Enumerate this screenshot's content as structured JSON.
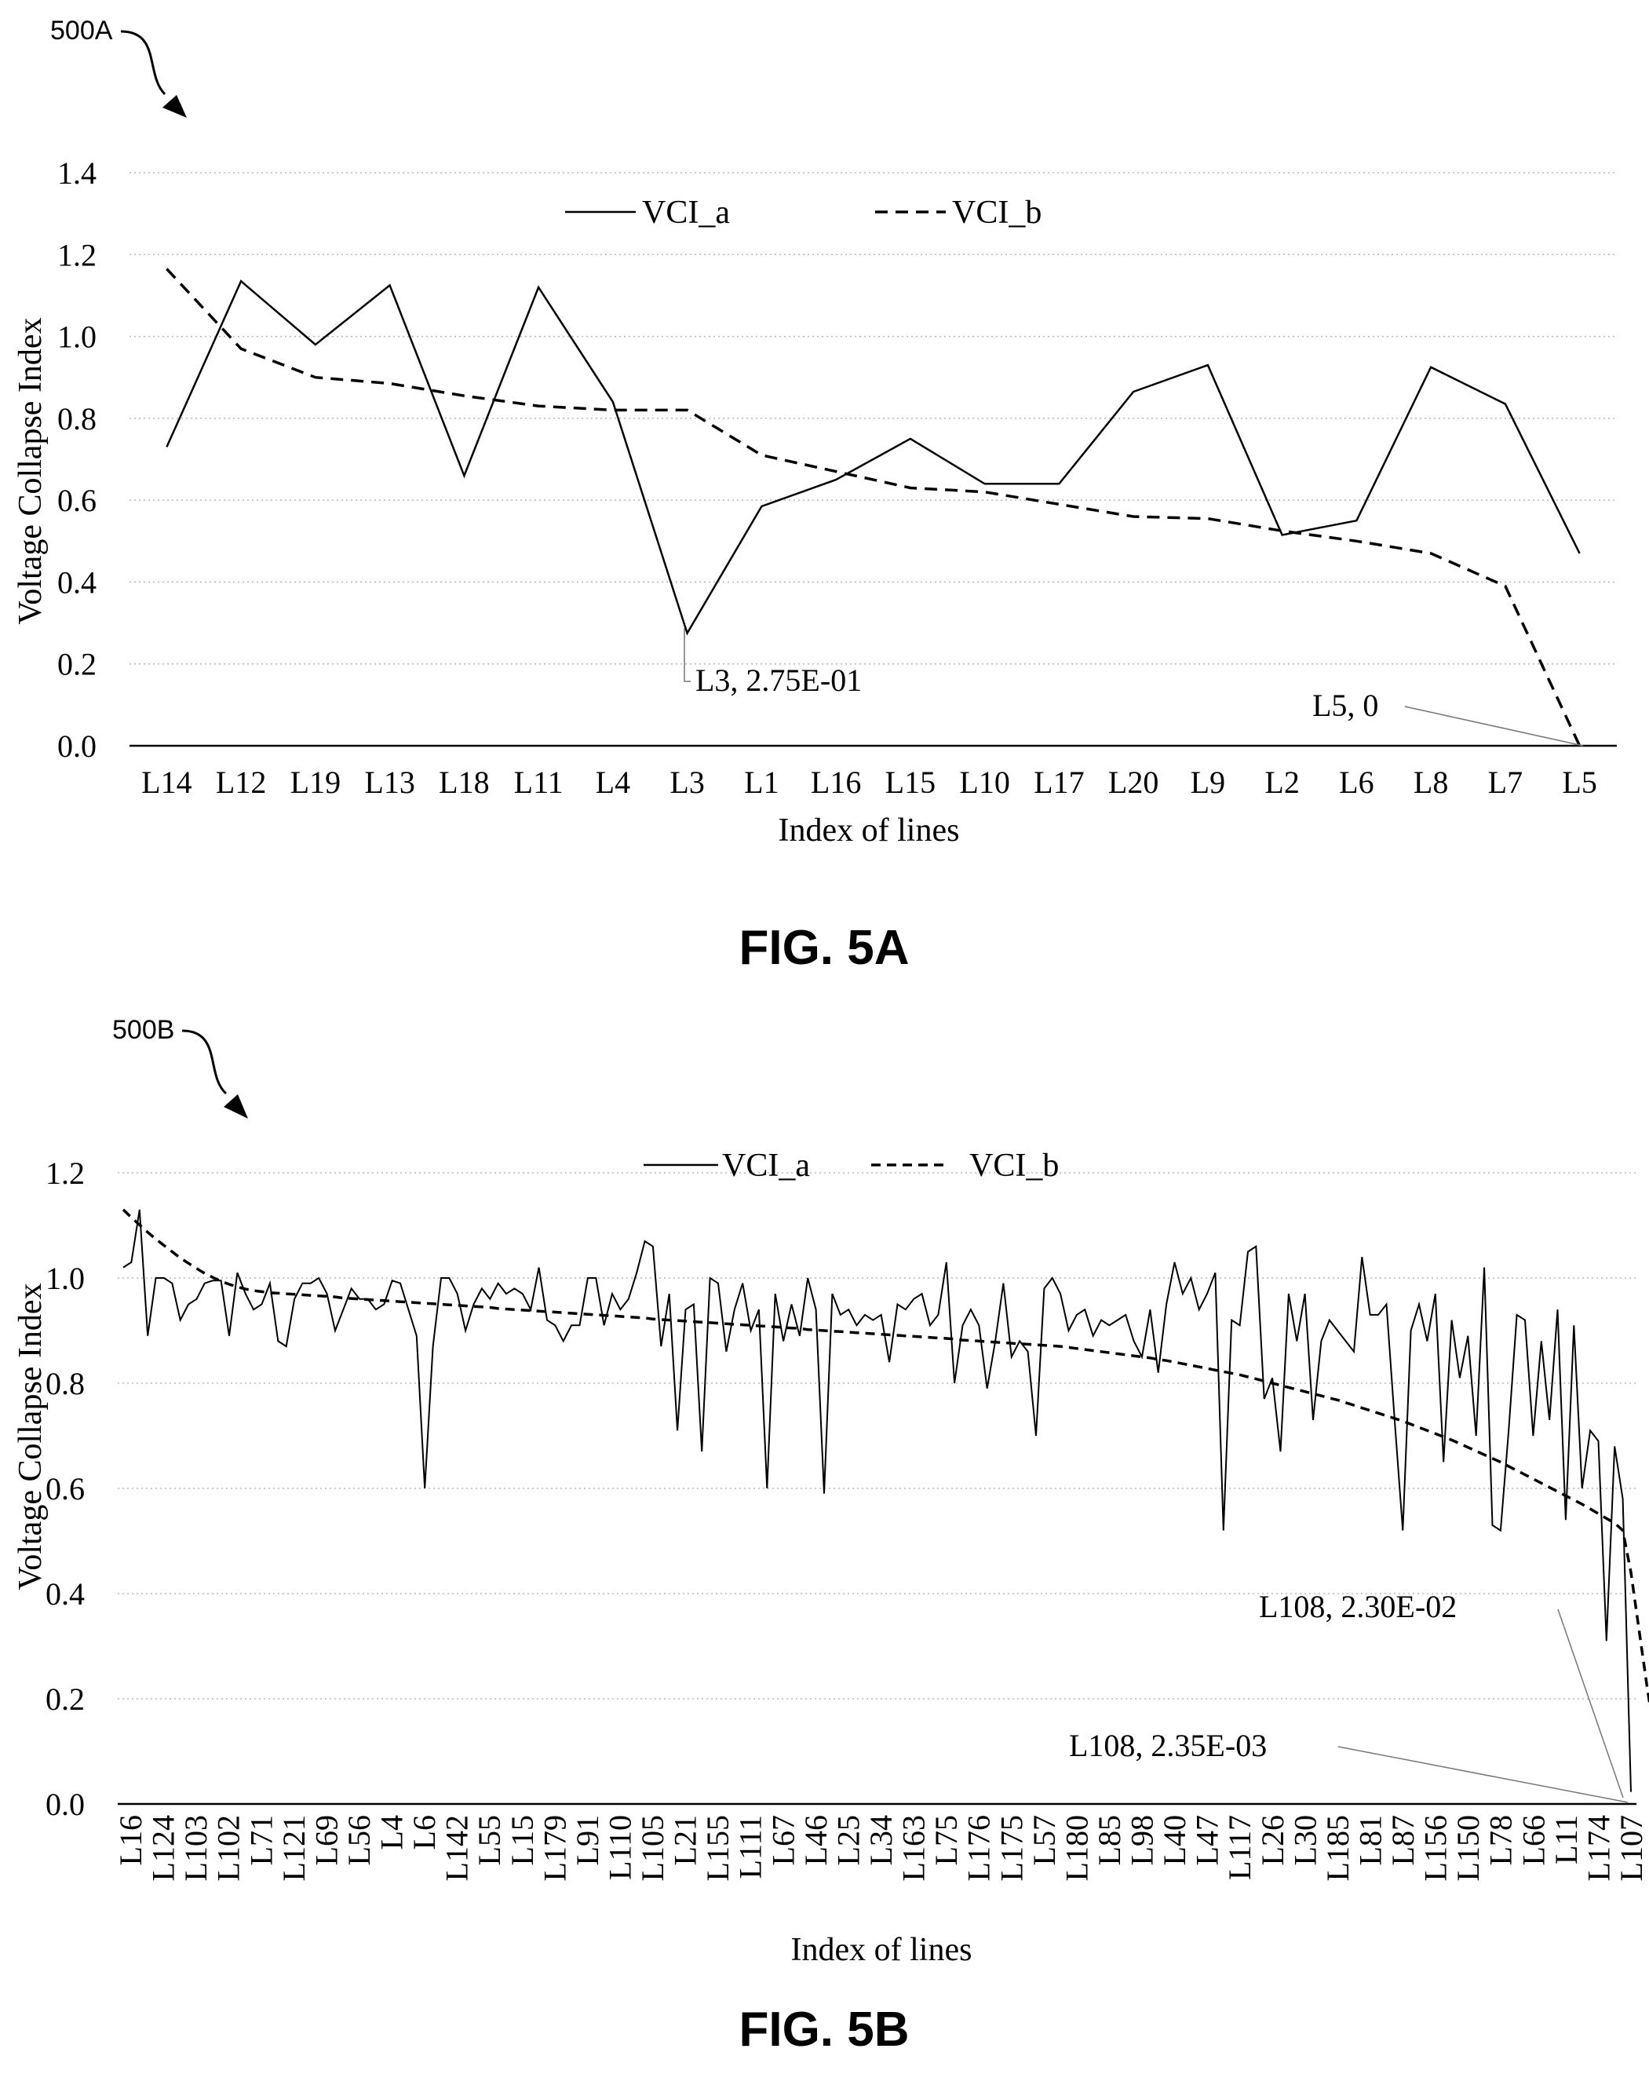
{
  "figures": [
    {
      "ref_label": "500A",
      "caption": "FIG.  5A",
      "chart_data": {
        "type": "line",
        "xlabel": "Index of lines",
        "ylabel": "Voltage Collapse Index",
        "ylim": [
          0,
          1.4
        ],
        "yticks": [
          "0.0",
          "0.2",
          "0.4",
          "0.6",
          "0.8",
          "1.0",
          "1.2",
          "1.4"
        ],
        "grid": true,
        "legend_position": "top",
        "categories": [
          "L14",
          "L12",
          "L19",
          "L13",
          "L18",
          "L11",
          "L4",
          "L3",
          "L1",
          "L16",
          "L15",
          "L10",
          "L17",
          "L20",
          "L9",
          "L2",
          "L6",
          "L8",
          "L7",
          "L5"
        ],
        "series": [
          {
            "name": "VCI_a",
            "style": "solid",
            "values": [
              0.73,
              1.135,
              0.98,
              1.125,
              0.66,
              1.12,
              0.84,
              0.275,
              0.585,
              0.65,
              0.75,
              0.64,
              0.64,
              0.865,
              0.93,
              0.515,
              0.55,
              0.925,
              0.835,
              0.47
            ]
          },
          {
            "name": "VCI_b",
            "style": "dashed",
            "values": [
              1.165,
              0.97,
              0.9,
              0.885,
              0.855,
              0.83,
              0.82,
              0.82,
              0.71,
              0.67,
              0.63,
              0.62,
              0.59,
              0.56,
              0.555,
              0.525,
              0.5,
              0.47,
              0.39,
              0.0
            ]
          }
        ],
        "annotations": [
          {
            "text": "L3, 2.75E-01",
            "category": "L3",
            "value": 0.275
          },
          {
            "text": "L5, 0",
            "category": "L5",
            "value": 0.0
          }
        ]
      }
    },
    {
      "ref_label": "500B",
      "caption": "FIG.  5B",
      "chart_data": {
        "type": "line",
        "xlabel": "Index of lines",
        "ylabel": "Voltage Collapse Index",
        "ylim": [
          0,
          1.2
        ],
        "yticks": [
          "0.0",
          "0.2",
          "0.4",
          "0.6",
          "0.8",
          "1.0",
          "1.2"
        ],
        "grid": true,
        "legend_position": "top",
        "point_count": 186,
        "tick_labels": [
          "L16",
          "L124",
          "L103",
          "L102",
          "L71",
          "L121",
          "L69",
          "L56",
          "L4",
          "L6",
          "L142",
          "L55",
          "L15",
          "L179",
          "L91",
          "L110",
          "L105",
          "L21",
          "L155",
          "L111",
          "L67",
          "L46",
          "L25",
          "L34",
          "L163",
          "L75",
          "L176",
          "L175",
          "L57",
          "L180",
          "L85",
          "L98",
          "L40",
          "L47",
          "L117",
          "L26",
          "L30",
          "L185",
          "L81",
          "L87",
          "L156",
          "L150",
          "L78",
          "L66",
          "L11",
          "L174",
          "L107"
        ],
        "series": [
          {
            "name": "VCI_a",
            "style": "solid",
            "values": [
              1.02,
              1.03,
              1.13,
              0.89,
              1.0,
              1.0,
              0.99,
              0.92,
              0.95,
              0.96,
              0.99,
              0.995,
              0.995,
              0.89,
              1.01,
              0.97,
              0.94,
              0.95,
              0.99,
              0.88,
              0.87,
              0.96,
              0.99,
              0.99,
              1.0,
              0.97,
              0.9,
              0.94,
              0.98,
              0.96,
              0.96,
              0.94,
              0.95,
              0.995,
              0.99,
              0.94,
              0.89,
              0.6,
              0.87,
              1.0,
              1.0,
              0.97,
              0.9,
              0.95,
              0.98,
              0.96,
              0.99,
              0.97,
              0.98,
              0.97,
              0.94,
              1.02,
              0.92,
              0.91,
              0.88,
              0.91,
              0.91,
              1.0,
              1.0,
              0.91,
              0.97,
              0.94,
              0.96,
              1.01,
              1.07,
              1.06,
              0.87,
              0.97,
              0.71,
              0.94,
              0.95,
              0.67,
              1.0,
              0.99,
              0.86,
              0.94,
              0.99,
              0.9,
              0.94,
              0.6,
              0.97,
              0.88,
              0.95,
              0.89,
              1.0,
              0.94,
              0.59,
              0.97,
              0.93,
              0.94,
              0.91,
              0.93,
              0.92,
              0.93,
              0.84,
              0.95,
              0.94,
              0.96,
              0.97,
              0.91,
              0.93,
              1.03,
              0.8,
              0.91,
              0.94,
              0.91,
              0.79,
              0.88,
              0.99,
              0.85,
              0.88,
              0.86,
              0.7,
              0.98,
              1.0,
              0.97,
              0.9,
              0.93,
              0.94,
              0.89,
              0.92,
              0.91,
              0.92,
              0.93,
              0.88,
              0.85,
              0.94,
              0.82,
              0.95,
              1.03,
              0.97,
              1.0,
              0.94,
              0.97,
              1.01,
              0.52,
              0.92,
              0.91,
              1.05,
              1.06,
              0.77,
              0.81,
              0.67,
              0.97,
              0.88,
              0.97,
              0.73,
              0.88,
              0.92,
              0.9,
              0.88,
              0.86,
              1.04,
              0.93,
              0.93,
              0.95,
              0.73,
              0.52,
              0.9,
              0.95,
              0.88,
              0.97,
              0.65,
              0.92,
              0.81,
              0.89,
              0.7,
              1.02,
              0.53,
              0.52,
              0.71,
              0.93,
              0.92,
              0.7,
              0.88,
              0.73,
              0.94,
              0.54,
              0.91,
              0.6,
              0.71,
              0.69,
              0.31,
              0.68,
              0.58,
              0.023
            ]
          },
          {
            "name": "VCI_b",
            "style": "dashed",
            "values": [
              1.13,
              1.115,
              1.101,
              1.087,
              1.074,
              1.062,
              1.05,
              1.038,
              1.028,
              1.018,
              1.009,
              1.001,
              0.994,
              0.988,
              0.983,
              0.979,
              0.976,
              0.974,
              0.972,
              0.971,
              0.97,
              0.969,
              0.968,
              0.967,
              0.966,
              0.965,
              0.964,
              0.962,
              0.961,
              0.96,
              0.959,
              0.958,
              0.957,
              0.956,
              0.955,
              0.954,
              0.953,
              0.952,
              0.951,
              0.95,
              0.949,
              0.948,
              0.947,
              0.946,
              0.945,
              0.944,
              0.942,
              0.941,
              0.94,
              0.939,
              0.938,
              0.937,
              0.936,
              0.935,
              0.934,
              0.933,
              0.932,
              0.931,
              0.93,
              0.929,
              0.928,
              0.927,
              0.926,
              0.925,
              0.924,
              0.922,
              0.921,
              0.92,
              0.919,
              0.918,
              0.917,
              0.916,
              0.915,
              0.914,
              0.913,
              0.912,
              0.911,
              0.91,
              0.909,
              0.908,
              0.907,
              0.906,
              0.905,
              0.904,
              0.902,
              0.901,
              0.9,
              0.899,
              0.898,
              0.897,
              0.896,
              0.895,
              0.894,
              0.893,
              0.892,
              0.891,
              0.89,
              0.889,
              0.888,
              0.887,
              0.886,
              0.885,
              0.884,
              0.882,
              0.881,
              0.88,
              0.879,
              0.878,
              0.877,
              0.876,
              0.875,
              0.874,
              0.873,
              0.872,
              0.871,
              0.87,
              0.868,
              0.866,
              0.864,
              0.862,
              0.86,
              0.858,
              0.856,
              0.854,
              0.852,
              0.85,
              0.848,
              0.845,
              0.843,
              0.84,
              0.837,
              0.834,
              0.831,
              0.828,
              0.825,
              0.822,
              0.819,
              0.816,
              0.812,
              0.808,
              0.804,
              0.8,
              0.796,
              0.792,
              0.788,
              0.784,
              0.78,
              0.776,
              0.772,
              0.768,
              0.763,
              0.758,
              0.753,
              0.748,
              0.743,
              0.738,
              0.733,
              0.728,
              0.722,
              0.716,
              0.71,
              0.704,
              0.698,
              0.692,
              0.685,
              0.678,
              0.671,
              0.664,
              0.657,
              0.65,
              0.642,
              0.634,
              0.626,
              0.618,
              0.61,
              0.602,
              0.594,
              0.586,
              0.578,
              0.57,
              0.561,
              0.552,
              0.543,
              0.534,
              0.52,
              0.44,
              0.33,
              0.22,
              0.12,
              0.00235
            ]
          }
        ],
        "annotations": [
          {
            "text": "L108, 2.30E-02",
            "value": 0.023
          },
          {
            "text": "L108, 2.35E-03",
            "value": 0.00235
          }
        ]
      }
    }
  ]
}
